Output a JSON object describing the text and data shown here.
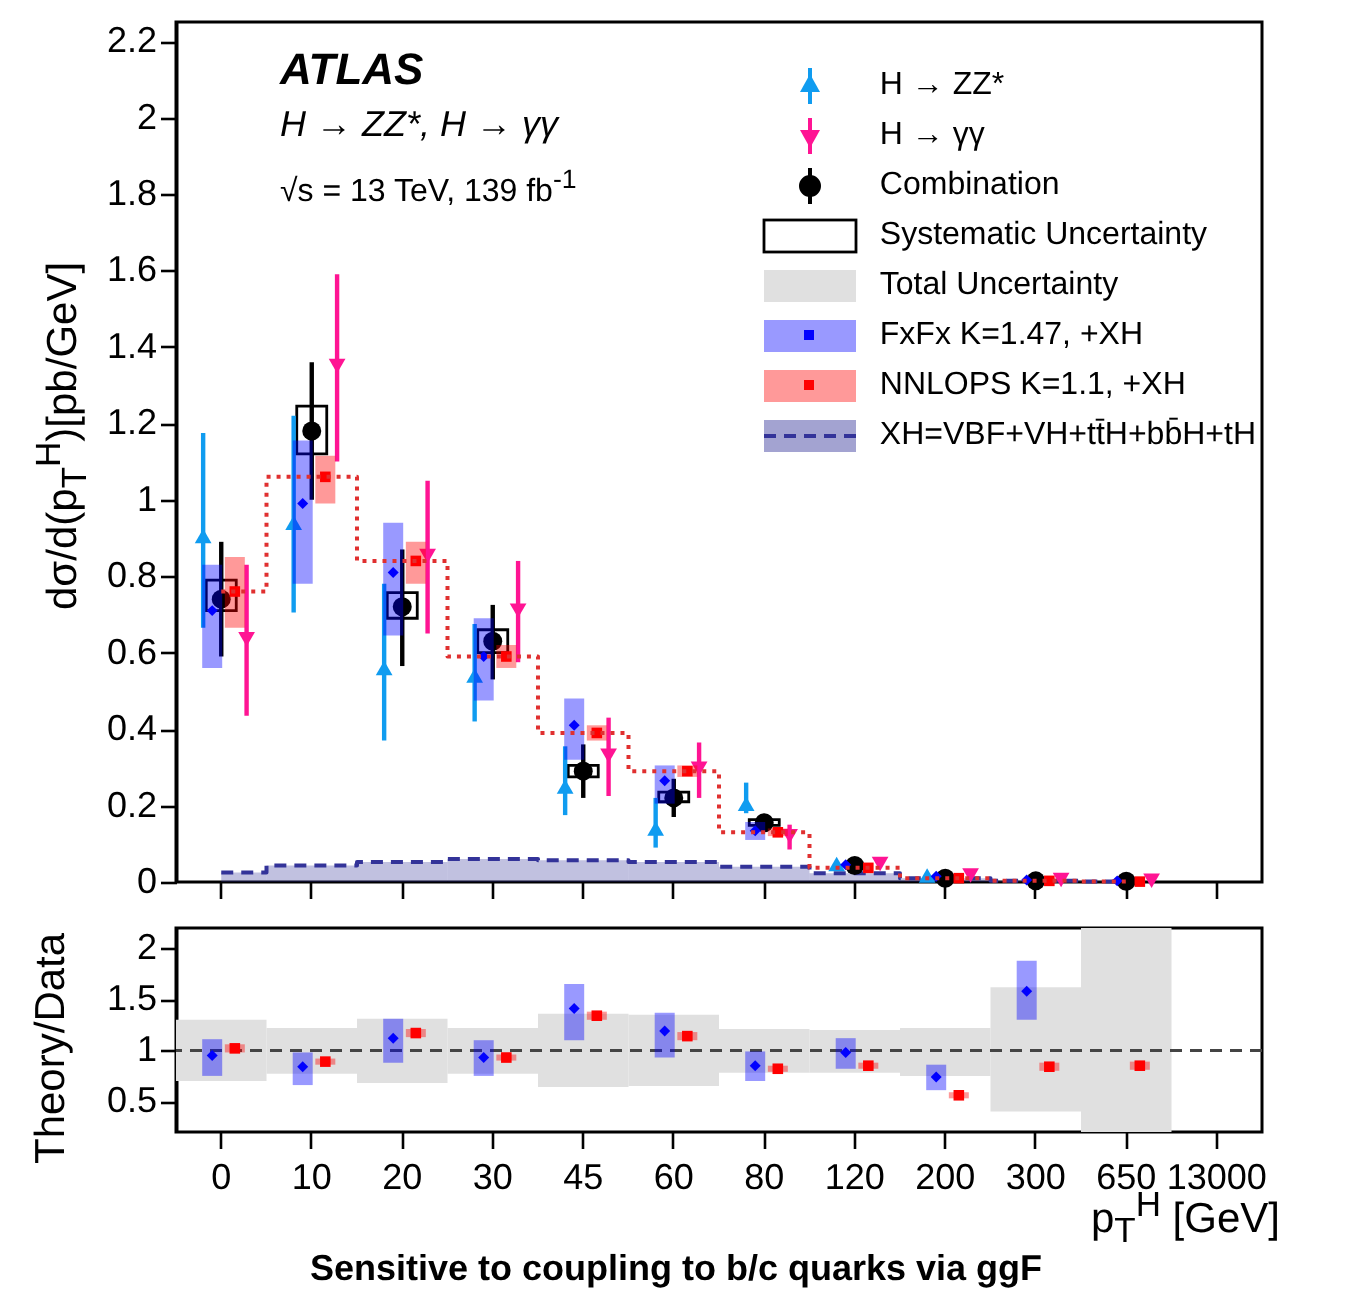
{
  "chart_data": [
    {
      "type": "scatter",
      "title": "Sensitive to coupling to b/c quarks via ggF",
      "ylabel": "dσ/d(p$_{T}$$^{H}$)[pb/GeV]",
      "annotations": [
        "ATLAS",
        "H → ZZ*, H → γγ",
        "√s = 13 TeV, 139 fb$^{-1}$"
      ],
      "categories": [
        "0",
        "10",
        "20",
        "30",
        "45",
        "60",
        "80",
        "120",
        "200",
        "300",
        "650",
        "13000"
      ],
      "ylim": [
        0,
        2.25
      ],
      "yticks": [
        0,
        0.2,
        0.4,
        0.6,
        0.8,
        1,
        1.2,
        1.4,
        1.6,
        1.8,
        2,
        2.2
      ],
      "tick_labels": "y",
      "legend": "top right",
      "series": [
        {
          "name": "H → ZZ*",
          "color": "#109cf0",
          "marker": "triangle",
          "values": [
            0.905,
            0.94,
            0.56,
            0.54,
            0.25,
            0.14,
            0.205,
            0.047,
            0.017,
            null,
            null,
            null
          ],
          "errors": [
            [
              0.665,
              1.175
            ],
            [
              0.705,
              1.22
            ],
            [
              0.37,
              0.78
            ],
            [
              0.42,
              0.675
            ],
            [
              0.175,
              0.355
            ],
            [
              0.09,
              0.22
            ],
            [
              0.18,
              0.26
            ],
            null,
            null,
            null,
            null,
            null
          ]
        },
        {
          "name": "H → γγ",
          "color": "#ff1493",
          "marker": "triangle-down",
          "values": [
            0.635,
            1.35,
            0.853,
            0.71,
            0.33,
            0.296,
            0.12,
            0.047,
            0.017,
            0.005,
            0.003,
            null
          ],
          "errors": [
            [
              0.435,
              0.83
            ],
            [
              1.1,
              1.59
            ],
            [
              0.65,
              1.05
            ],
            [
              0.575,
              0.84
            ],
            [
              0.225,
              0.43
            ],
            [
              0.22,
              0.365
            ],
            [
              0.085,
              0.15
            ],
            null,
            null,
            null,
            null,
            null
          ]
        },
        {
          "name": "Combination",
          "color": "#000000",
          "marker": "circle",
          "values": [
            0.74,
            1.18,
            0.72,
            0.63,
            0.29,
            0.22,
            0.155,
            0.043,
            0.01,
            0.003,
            0.002,
            null
          ],
          "errors": [
            [
              0.59,
              0.89
            ],
            [
              1.0,
              1.36
            ],
            [
              0.565,
              0.87
            ],
            [
              0.53,
              0.725
            ],
            [
              0.22,
              0.36
            ],
            [
              0.17,
              0.27
            ],
            [
              0.14,
              0.165
            ],
            null,
            null,
            null,
            null,
            null
          ]
        },
        {
          "name": "Systematic Uncertainty",
          "type": "bar",
          "line_style": "solid",
          "color": "#000000",
          "base": [
            0.71,
            1.12,
            0.69,
            0.6,
            0.275,
            0.21,
            0.148,
            null,
            null,
            null,
            null,
            null
          ],
          "values": [
            0.08,
            0.125,
            0.067,
            0.06,
            0.03,
            0.025,
            0.015,
            null,
            null,
            null,
            null,
            null
          ]
        },
        {
          "name": "FxFx K=1.47, +XH",
          "color": "#0000ff",
          "marker": "diamond",
          "values": [
            0.71,
            0.99,
            0.81,
            0.59,
            0.41,
            0.265,
            0.134,
            0.045,
            0.015,
            0.005,
            0.003,
            null
          ],
          "errors": [
            [
              0.56,
              0.83
            ],
            [
              0.78,
              1.155
            ],
            [
              0.645,
              0.94
            ],
            [
              0.475,
              0.69
            ],
            [
              0.32,
              0.48
            ],
            [
              0.205,
              0.305
            ],
            [
              0.11,
              0.157
            ],
            null,
            null,
            null,
            null,
            null
          ]
        },
        {
          "name": "NNLOPS K=1.1, +XH",
          "color": "#ff0000",
          "marker": "square",
          "values": [
            0.76,
            1.06,
            0.84,
            0.59,
            0.39,
            0.29,
            0.13,
            0.037,
            0.01,
            0.003,
            0.001,
            null
          ],
          "errors": [
            [
              0.665,
              0.85
            ],
            [
              0.99,
              1.115
            ],
            [
              0.78,
              0.89
            ],
            [
              0.56,
              0.62
            ],
            [
              0.37,
              0.41
            ],
            [
              0.275,
              0.305
            ],
            [
              0.12,
              0.14
            ],
            null,
            null,
            null,
            null,
            null
          ]
        },
        {
          "type": "step",
          "color": "#e03030",
          "line_style": "dotted",
          "values": [
            0.76,
            1.06,
            0.84,
            0.59,
            0.39,
            0.29,
            0.13,
            0.037,
            0.01,
            0.003,
            0.001,
            null
          ]
        },
        {
          "name": "XH=VBF+VH+tt̄H+bb̄H+tH",
          "type": "area",
          "color": "#333399",
          "line_style": "dashed",
          "values": [
            0.025,
            0.043,
            0.052,
            0.06,
            0.057,
            0.052,
            0.04,
            0.023,
            0.01,
            0.003,
            0.001,
            null
          ]
        }
      ]
    },
    {
      "type": "scatter",
      "xlabel": "p$_{T}$$^{H}$ [GeV]",
      "ylabel": "Theory/Data",
      "categories": [
        "0",
        "10",
        "20",
        "30",
        "45",
        "60",
        "80",
        "120",
        "200",
        "300",
        "650",
        "13000"
      ],
      "ylim": [
        0.2,
        2.2
      ],
      "yticks": [
        0.5,
        1,
        1.5,
        2
      ],
      "ref_lines": [
        {
          "axis": "y",
          "value": 1,
          "line_style": "dashed",
          "color": "#444444"
        }
      ],
      "series": [
        {
          "name": "Total Uncertainty",
          "type": "bar",
          "color": "#e0e0e0",
          "base": [
            0.7,
            0.77,
            0.68,
            0.77,
            0.64,
            0.65,
            0.78,
            0.78,
            0.75,
            0.4,
            0.2,
            null
          ],
          "values": [
            0.6,
            0.45,
            0.63,
            0.45,
            0.72,
            0.7,
            0.43,
            0.42,
            0.47,
            1.22,
            2.0,
            null
          ]
        },
        {
          "color": "#0000ff",
          "marker": "diamond",
          "values": [
            0.95,
            0.84,
            1.12,
            0.93,
            1.41,
            1.19,
            0.85,
            0.98,
            0.74,
            1.58,
            null,
            null
          ],
          "errors": [
            [
              0.75,
              1.11
            ],
            [
              0.66,
              0.98
            ],
            [
              0.88,
              1.31
            ],
            [
              0.75,
              1.1
            ],
            [
              1.1,
              1.65
            ],
            [
              0.93,
              1.37
            ],
            [
              0.7,
              0.99
            ],
            [
              0.82,
              1.12
            ],
            [
              0.61,
              0.86
            ],
            [
              1.3,
              1.88
            ],
            null,
            null
          ]
        },
        {
          "color": "#ff0000",
          "marker": "square",
          "values": [
            1.02,
            0.89,
            1.17,
            0.93,
            1.34,
            1.14,
            0.82,
            0.85,
            0.56,
            0.84,
            0.85,
            null
          ],
          "errors": [
            [
              0.98,
              1.06
            ],
            [
              0.86,
              0.92
            ],
            [
              1.13,
              1.21
            ],
            [
              0.9,
              0.96
            ],
            [
              1.3,
              1.38
            ],
            [
              1.1,
              1.18
            ],
            [
              0.79,
              0.85
            ],
            [
              0.82,
              0.88
            ],
            [
              0.53,
              0.59
            ],
            [
              0.8,
              0.88
            ],
            [
              0.81,
              0.89
            ],
            null
          ]
        }
      ]
    }
  ]
}
